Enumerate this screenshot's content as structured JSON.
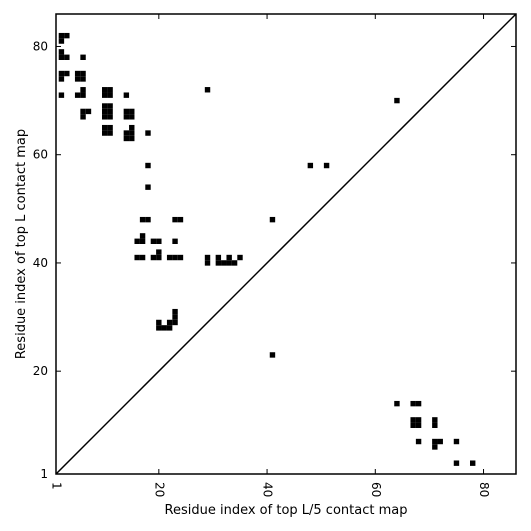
{
  "chart_data": {
    "type": "heatmap",
    "title": "",
    "xlabel": "Residue index of top L/5 contact map",
    "ylabel": "Residue index of top L contact map",
    "xlim": [
      1,
      86
    ],
    "ylim": [
      1,
      86
    ],
    "x_ticks": [
      {
        "value": 1,
        "label": "1"
      },
      {
        "value": 20,
        "label": "20"
      },
      {
        "value": 40,
        "label": "40"
      },
      {
        "value": 60,
        "label": "60"
      },
      {
        "value": 80,
        "label": "80"
      }
    ],
    "y_ticks": [
      {
        "value": 1,
        "label": "1"
      },
      {
        "value": 20,
        "label": "20"
      },
      {
        "value": 40,
        "label": "40"
      },
      {
        "value": 60,
        "label": "60"
      },
      {
        "value": 80,
        "label": "80"
      }
    ],
    "diagonal": true,
    "grid": false,
    "cell_color": "#000000",
    "upper_contacts": [
      [
        2,
        82
      ],
      [
        2,
        81
      ],
      [
        3,
        82
      ],
      [
        2,
        79
      ],
      [
        2,
        78
      ],
      [
        3,
        78
      ],
      [
        6,
        78
      ],
      [
        2,
        75
      ],
      [
        2,
        74
      ],
      [
        3,
        75
      ],
      [
        5,
        75
      ],
      [
        5,
        74
      ],
      [
        6,
        75
      ],
      [
        6,
        74
      ],
      [
        2,
        71
      ],
      [
        5,
        71
      ],
      [
        6,
        71
      ],
      [
        6,
        72
      ],
      [
        6,
        68
      ],
      [
        6,
        67
      ],
      [
        7,
        68
      ],
      [
        10,
        72
      ],
      [
        10,
        71
      ],
      [
        11,
        72
      ],
      [
        11,
        71
      ],
      [
        14,
        71
      ],
      [
        10,
        69
      ],
      [
        11,
        69
      ],
      [
        10,
        68
      ],
      [
        11,
        68
      ],
      [
        10,
        67
      ],
      [
        11,
        67
      ],
      [
        14,
        68
      ],
      [
        15,
        68
      ],
      [
        14,
        67
      ],
      [
        15,
        67
      ],
      [
        10,
        65
      ],
      [
        11,
        65
      ],
      [
        10,
        64
      ],
      [
        11,
        64
      ],
      [
        14,
        64
      ],
      [
        15,
        64
      ],
      [
        14,
        63
      ],
      [
        15,
        63
      ],
      [
        15,
        65
      ],
      [
        18,
        64
      ],
      [
        18,
        58
      ],
      [
        18,
        54
      ],
      [
        17,
        48
      ],
      [
        18,
        48
      ],
      [
        23,
        48
      ],
      [
        24,
        48
      ],
      [
        16,
        44
      ],
      [
        17,
        44
      ],
      [
        17,
        45
      ],
      [
        19,
        44
      ],
      [
        20,
        44
      ],
      [
        23,
        44
      ],
      [
        16,
        41
      ],
      [
        17,
        41
      ],
      [
        19,
        41
      ],
      [
        20,
        41
      ],
      [
        20,
        42
      ],
      [
        22,
        41
      ],
      [
        23,
        41
      ],
      [
        24,
        41
      ],
      [
        29,
        41
      ],
      [
        29,
        40
      ],
      [
        31,
        41
      ],
      [
        31,
        40
      ],
      [
        32,
        40
      ],
      [
        33,
        41
      ],
      [
        33,
        40
      ],
      [
        34,
        40
      ],
      [
        35,
        41
      ],
      [
        20,
        29
      ],
      [
        20,
        28
      ],
      [
        21,
        28
      ],
      [
        22,
        28
      ],
      [
        22,
        29
      ],
      [
        23,
        29
      ],
      [
        23,
        30
      ],
      [
        23,
        31
      ],
      [
        29,
        72
      ],
      [
        41,
        48
      ],
      [
        48,
        58
      ],
      [
        51,
        58
      ],
      [
        64,
        70
      ]
    ],
    "lower_contacts": [
      [
        41,
        23
      ],
      [
        64,
        14
      ],
      [
        67,
        14
      ],
      [
        68,
        14
      ],
      [
        67,
        11
      ],
      [
        68,
        11
      ],
      [
        67,
        10
      ],
      [
        68,
        10
      ],
      [
        71,
        11
      ],
      [
        71,
        10
      ],
      [
        68,
        7
      ],
      [
        71,
        7
      ],
      [
        72,
        7
      ],
      [
        71,
        6
      ],
      [
        75,
        7
      ],
      [
        75,
        3
      ],
      [
        78,
        3
      ]
    ]
  }
}
